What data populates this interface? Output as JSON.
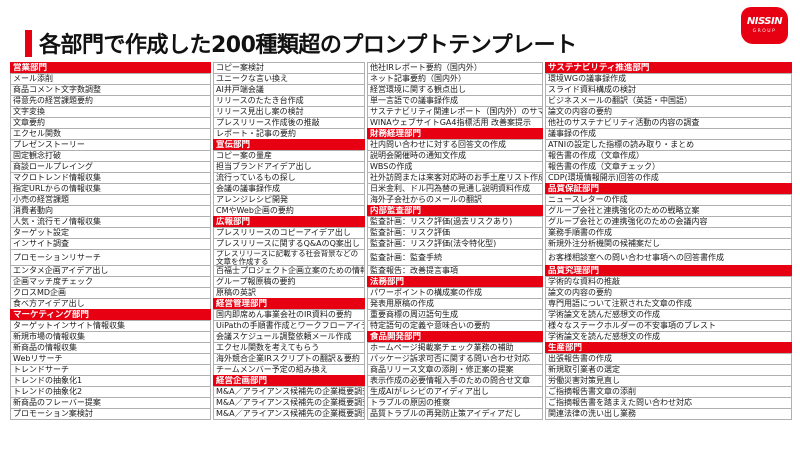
{
  "slide": {
    "title": "各部門で作成した200種類超のプロンプトテンプレート"
  },
  "logo": {
    "brand": "NISSIN",
    "group": "GROUP"
  },
  "colors": {
    "accent_red": "#e60012",
    "grid_border": "#b0b0b0",
    "title_text": "#111111",
    "item_text": "#1a1a1a"
  },
  "columns": [
    {
      "cells": [
        {
          "header": "営業部門"
        },
        {
          "item": "メール添削"
        },
        {
          "item": "商品コメント文字数調整"
        },
        {
          "item": "得意先の経営課題要約"
        },
        {
          "item": "文字変換"
        },
        {
          "item": "文章要約"
        },
        {
          "item": "エクセル関数"
        },
        {
          "item": "プレゼンストーリー"
        },
        {
          "item": "固定観念打破"
        },
        {
          "item": "商談ロールプレイング"
        },
        {
          "item": "マクロトレンド情報収集"
        },
        {
          "item": "指定URLからの情報収集"
        },
        {
          "item": "小売の経営課題"
        },
        {
          "item": "消費者動向"
        },
        {
          "item": "人気・流行モノ情報収集"
        },
        {
          "item": "ターゲット設定"
        },
        {
          "item": "インサイト調査"
        },
        {
          "item": "プロモーションリサーチ"
        },
        {
          "item": "エンタメ企画アイデア出し"
        },
        {
          "item": "企画マッチ度チェック"
        },
        {
          "item": "クロスMD企画"
        },
        {
          "item": "食べ方アイデア出し"
        },
        {
          "header": "マーケティング部門"
        },
        {
          "item": "ターゲットインサイト情報収集"
        },
        {
          "item": "新規市場の情報収集"
        },
        {
          "item": "新商品の情報収集"
        },
        {
          "item": "Webリサーチ"
        },
        {
          "item": "トレンドサーチ"
        },
        {
          "item": "トレンドの抽象化1"
        },
        {
          "item": "トレンドの抽象化2"
        },
        {
          "item": "新商品のフレーバー提案"
        },
        {
          "item": "プロモーション案検討"
        }
      ]
    },
    {
      "cells": [
        {
          "item": "コピー案検討"
        },
        {
          "item": "ユニークな言い換え"
        },
        {
          "item": "AI井戸端会議"
        },
        {
          "item": "リリースのたたき台作成"
        },
        {
          "item": "リリース見出し案の検討"
        },
        {
          "item": "プレスリリース作成後の推敲"
        },
        {
          "item": "レポート・記事の要約"
        },
        {
          "header": "宣伝部門"
        },
        {
          "item": "コピー案の量産"
        },
        {
          "item": "担当ブランドアイデア出し"
        },
        {
          "item": "流行っているもの探し"
        },
        {
          "item": "会議の議事録作成"
        },
        {
          "item": "アレンジレシピ開発"
        },
        {
          "item": "CMやWeb企画の要約"
        },
        {
          "header": "広報部門"
        },
        {
          "item": "プレスリリースのコピーアイデア出し"
        },
        {
          "item": "プレスリリースに関するQ&AのQ案出し"
        },
        {
          "item": "プレスリリースに記載する社会背景などの文章を作成する"
        },
        {
          "item": "百福士プロジェクト企画立案のための情報収集"
        },
        {
          "item": "グループ報原稿の要約"
        },
        {
          "item": "原稿の英訳"
        },
        {
          "header": "経営管理部門"
        },
        {
          "item": "国内即席めん事業会社のIR資料の要約"
        },
        {
          "item": "UiPathの手順書作成とワークフローアイデア出し"
        },
        {
          "item": "会議スケジュール調整依頼メール作成"
        },
        {
          "item": "エクセル関数を考えてもらう"
        },
        {
          "item": "海外競合企業IRスクリプトの翻訳＆要約"
        },
        {
          "item": "チームメンバー予定の組み換え"
        },
        {
          "header": "経営企画部門"
        },
        {
          "item": "M&A／アライアンス候補先の企業概要調査①"
        },
        {
          "item": "M&A／アライアンス候補先の企業概要調査②"
        },
        {
          "item": "M&A／アライアンス候補先の企業概要調査③"
        }
      ]
    },
    {
      "cells": [
        {
          "item": "他社IRレポート要約（国内外）"
        },
        {
          "item": "ネット記事要約（国内外）"
        },
        {
          "item": "経営環境に関する観点出し"
        },
        {
          "item": "単一言語での議事録作成"
        },
        {
          "item": "サステナビリティ関連レポート（国内外）のサマリ"
        },
        {
          "item": "WINAウェブサイトGA4指標活用 改善案提示"
        },
        {
          "header": "財務経理部門"
        },
        {
          "item": "社内問い合わせに対する回答文の作成"
        },
        {
          "item": "説明会開催時の通知文作成"
        },
        {
          "item": "WBSの作成"
        },
        {
          "item": "社外訪問または来客対応時のお手土産リスト作成"
        },
        {
          "item": "日米金利、ドル円為替の見通し説明資料作成"
        },
        {
          "item": "海外子会社からのメールの翻訳"
        },
        {
          "header": "内部監査部門"
        },
        {
          "item": "監査計画：リスク評価(過去リスクあり)"
        },
        {
          "item": "監査計画：リスク評価"
        },
        {
          "item": "監査計画：リスク評価(法令特化型)"
        },
        {
          "item": "監査計画：監査手続"
        },
        {
          "item": "監査報告：改善提言事項"
        },
        {
          "header": "法務部門"
        },
        {
          "item": "パワーポイントの構成案の作成"
        },
        {
          "item": "発表用原稿の作成"
        },
        {
          "item": "重要商標の周辺語句生成"
        },
        {
          "item": "特定語句の定義や意味合いの要約"
        },
        {
          "header": "食品開発部門"
        },
        {
          "item": "ホームページ掲載案チェック業務の補助"
        },
        {
          "item": "パッケージ訴求可否に関する問い合わせ対応"
        },
        {
          "item": "商品リリース文章の添削・修正案の提案"
        },
        {
          "item": "表示作成の必要情報入手のための問合せ文章"
        },
        {
          "item": "生成AIがレシピのアイディア出し"
        },
        {
          "item": "トラブルの原因の推察"
        },
        {
          "item": "品質トラブルの再発防止策アイディアだし"
        }
      ]
    },
    {
      "cells": [
        {
          "header": "サステナビリティ推進部門"
        },
        {
          "item": "環境WGの議事録作成"
        },
        {
          "item": "スライド資料構成の検討"
        },
        {
          "item": "ビジネスメールの翻訳（英語・中国語）"
        },
        {
          "item": "論文の内容の要約"
        },
        {
          "item": "他社のサステナビリティ活動の内容の調査"
        },
        {
          "item": "議事録の作成"
        },
        {
          "item": "ATNIの設定した指標の読み取り・まとめ"
        },
        {
          "item": "報告書の作成（文章作成）"
        },
        {
          "item": "報告書の作成（文章チェック）"
        },
        {
          "item": "CDP(環境情報開示)回答の作成"
        },
        {
          "header": "品質保証部門"
        },
        {
          "item": "ニュースレターの作成"
        },
        {
          "item": "グループ会社と連携強化のための戦略立案"
        },
        {
          "item": "グループ会社との連携強化のための会議内容"
        },
        {
          "item": "業務手順書の作成"
        },
        {
          "item": "新規外注分析機関の候補案だし"
        },
        {
          "item": "お客様相談室への問い合わせ事項への回答書作成"
        },
        {
          "header": "品質究理部門"
        },
        {
          "item": "学術的な資料の推敲"
        },
        {
          "item": "論文の内容の要約"
        },
        {
          "item": "専門用語について注釈された文章の作成"
        },
        {
          "item": "学術論文を読んだ感想文の作成"
        },
        {
          "item": "様々なステークホルダーの不安事項のブレスト"
        },
        {
          "item": "学術論文を読んだ感想文の作成"
        },
        {
          "header": "生産部門"
        },
        {
          "item": "出張報告書の作成"
        },
        {
          "item": "新規取引業者の選定"
        },
        {
          "item": "労働災害対策見直し"
        },
        {
          "item": "ご指摘報告書文章の添削"
        },
        {
          "item": "ご指摘報告書を踏まえた問い合わせ対応"
        },
        {
          "item": "関連法律の洗い出し業務"
        }
      ]
    }
  ]
}
